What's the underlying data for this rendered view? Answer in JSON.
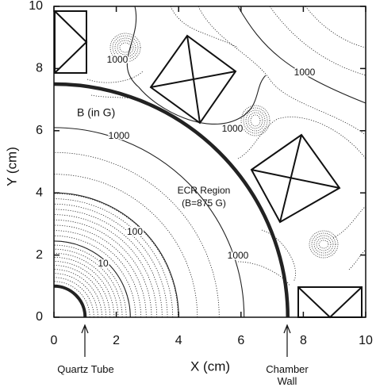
{
  "chart_data": {
    "type": "contour",
    "x_label": "X  (cm)",
    "y_label": "Y  (cm)",
    "xlim": [
      0,
      10
    ],
    "ylim": [
      0,
      10
    ],
    "xticks": [
      0,
      2,
      4,
      6,
      8,
      10
    ],
    "yticks": [
      0,
      2,
      4,
      6,
      8,
      10
    ],
    "grid": false,
    "annotations": [
      "1000",
      "1000",
      "1000",
      "1000",
      "1000",
      "100",
      "10",
      "B (in G)",
      "ECR Region",
      "(B=875 G)"
    ],
    "callouts": [
      "Quartz Tube",
      "Chamber Wall"
    ]
  }
}
